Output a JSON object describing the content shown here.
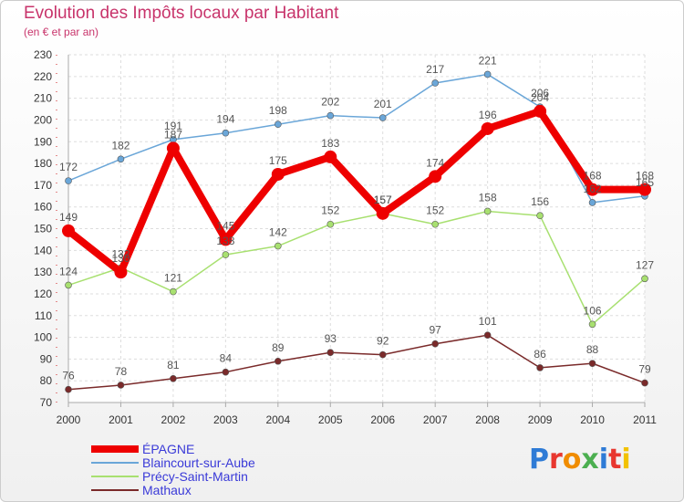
{
  "title": "Evolution des Impôts locaux par Habitant",
  "subtitle": "(en € et par an)",
  "logo": {
    "text": "Proxiti",
    "letter_colors": [
      "#2e7bd6",
      "#e8372f",
      "#f08c00",
      "#4caf50",
      "#2e7bd6",
      "#e8372f",
      "#f2c200"
    ]
  },
  "chart_data": {
    "type": "line",
    "x": [
      "2000",
      "2001",
      "2002",
      "2003",
      "2004",
      "2005",
      "2006",
      "2007",
      "2008",
      "2009",
      "2010",
      "2011"
    ],
    "ylim": [
      70,
      230
    ],
    "yticks": [
      70,
      80,
      90,
      100,
      110,
      120,
      130,
      140,
      150,
      160,
      170,
      180,
      190,
      200,
      210,
      220,
      230
    ],
    "grid": true,
    "legend_position": "bottom-left",
    "series": [
      {
        "name": "ÉPAGNE",
        "color": "#ee0000",
        "values": [
          149,
          130,
          187,
          145,
          175,
          183,
          157,
          174,
          196,
          204,
          168,
          168
        ]
      },
      {
        "name": "Blaincourt-sur-Aube",
        "color": "#6aa6d8",
        "values": [
          172,
          182,
          191,
          194,
          198,
          202,
          201,
          217,
          221,
          206,
          162,
          165
        ]
      },
      {
        "name": "Précy-Saint-Martin",
        "color": "#a8e070",
        "values": [
          124,
          132,
          121,
          138,
          142,
          152,
          157,
          152,
          158,
          156,
          106,
          127
        ]
      },
      {
        "name": "Mathaux",
        "color": "#7a2a2a",
        "values": [
          76,
          78,
          81,
          84,
          89,
          93,
          92,
          97,
          101,
          86,
          88,
          79
        ]
      }
    ]
  }
}
